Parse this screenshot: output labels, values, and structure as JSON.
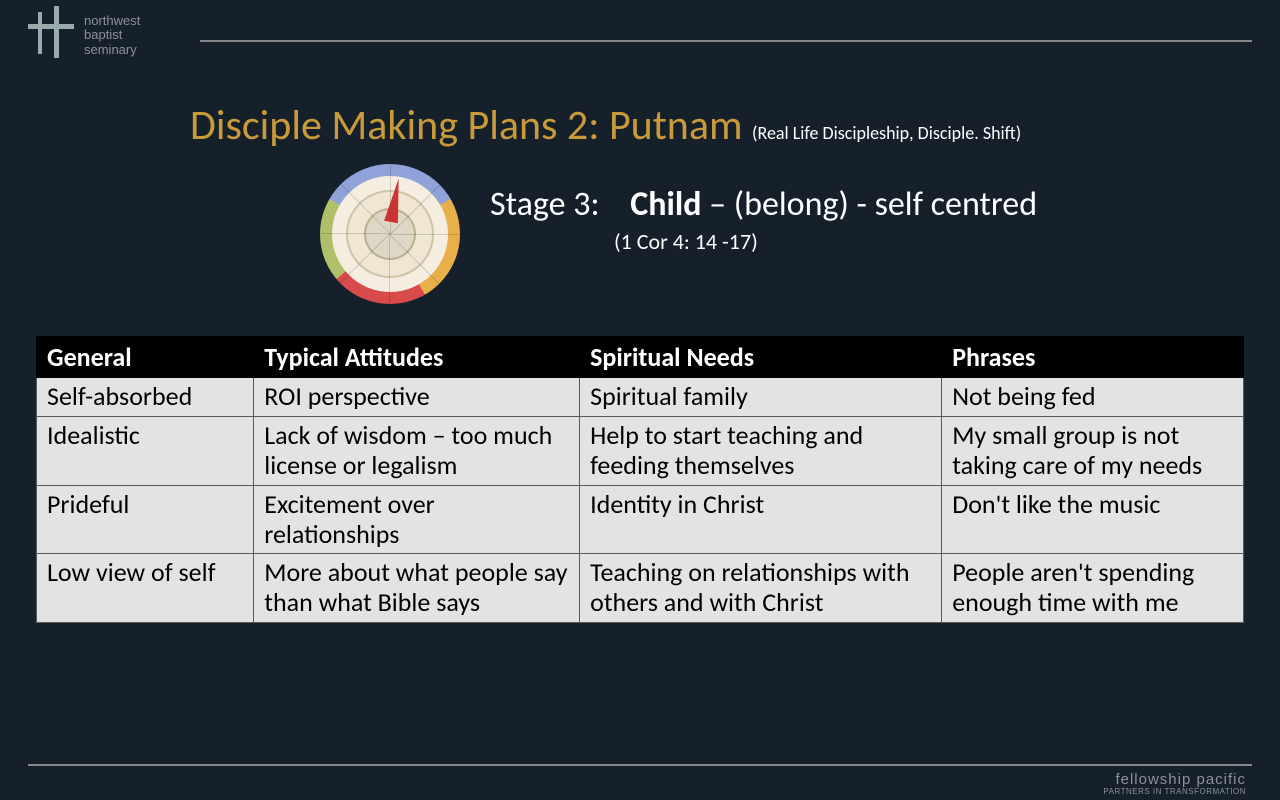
{
  "colors": {
    "background": "#15202b",
    "title_color": "#c89a3a",
    "text_light": "#ffffff",
    "text_muted": "#8a929a",
    "rule": "#888888",
    "table_header_bg": "#000000",
    "table_header_fg": "#ffffff",
    "table_cell_bg": "#e3e3e3",
    "table_cell_fg": "#000000",
    "table_border": "#5a5a5a"
  },
  "logo_tl": {
    "line1": "northwest",
    "line2": "baptist",
    "line3": "seminary"
  },
  "title": {
    "main": "Disciple Making Plans 2: Putnam ",
    "source": "(Real Life Discipleship, Disciple. Shift)",
    "fontsize_main": 42,
    "fontsize_source": 18
  },
  "stage": {
    "label": "Stage 3:",
    "word": "Child",
    "rest": " – (belong) - self centred",
    "fontsize": 34
  },
  "reference": "(1 Cor 4: 14 -17)",
  "wheel": {
    "segment_colors": [
      "#8fa3d8",
      "#e7b04a",
      "#d94b4b",
      "#b0c06a"
    ],
    "needle_color": "#c33",
    "ring_bg": "#f5eee0"
  },
  "table": {
    "fontsize": 26,
    "col_widths_pct": [
      18,
      27,
      30,
      25
    ],
    "headers": [
      "General",
      "Typical Attitudes",
      "Spiritual Needs",
      "Phrases"
    ],
    "rows": [
      [
        "Self-absorbed",
        "ROI perspective",
        "Spiritual family",
        "Not being fed"
      ],
      [
        "Idealistic",
        "Lack of wisdom – too much license or legalism",
        "Help to start teaching and feeding themselves",
        "My small group is not taking care of my needs"
      ],
      [
        "Prideful",
        "Excitement over relationships",
        "Identity in Christ",
        "Don't like the music"
      ],
      [
        "Low view of self",
        "More about what people say than what Bible says",
        "Teaching on relationships with others and with Christ",
        "People aren't spending enough time with me"
      ]
    ]
  },
  "footer": {
    "brand": "fellowship pacific",
    "sub": "PARTNERS IN TRANSFORMATION"
  }
}
